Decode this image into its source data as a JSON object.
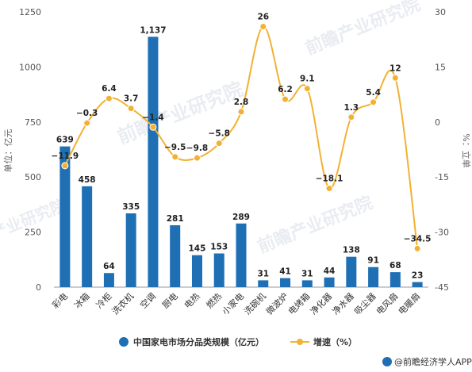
{
  "chart_data": {
    "type": "bar",
    "categories": [
      "彩电",
      "冰箱",
      "冷柜",
      "洗衣机",
      "空调",
      "厨电",
      "电热",
      "燃热",
      "小家电",
      "洗碗机",
      "微波炉",
      "电烤箱",
      "净化器",
      "净水器",
      "吸尘器",
      "电风扇",
      "电暖扇"
    ],
    "series": [
      {
        "name": "中国家电市场分品类规模（亿元）",
        "type": "bar",
        "axis": "left",
        "values": [
          639,
          458,
          64,
          335,
          1137,
          281,
          145,
          153,
          289,
          31,
          41,
          31,
          44,
          138,
          91,
          68,
          23
        ],
        "labels": [
          "639",
          "458",
          "64",
          "335",
          "1,137",
          "281",
          "145",
          "153",
          "289",
          "31",
          "41",
          "31",
          "44",
          "138",
          "91",
          "68",
          "23"
        ],
        "color": "#1f6fb5"
      },
      {
        "name": "增速（%）",
        "type": "line",
        "axis": "right",
        "values": [
          -11.9,
          -0.3,
          6.4,
          3.7,
          -1.4,
          -9.5,
          -9.8,
          -5.8,
          2.8,
          26,
          6.2,
          9.1,
          -18.1,
          1.3,
          5.4,
          12,
          -34.5
        ],
        "labels": [
          "−11.9",
          "−0.3",
          "6.4",
          "3.7",
          "−1.4",
          "−9.5",
          "−9.8",
          "−5.8",
          "2.8",
          "26",
          "6.2",
          "9.1",
          "−18.1",
          "1.3",
          "5.4",
          "12",
          "−34.5"
        ],
        "color": "#f2b134"
      }
    ],
    "y_left": {
      "label": "单位：亿元",
      "range": [
        0,
        1250
      ],
      "ticks": [
        "0",
        "250",
        "500",
        "750",
        "1000",
        "1250"
      ]
    },
    "y_right": {
      "label": "%：立单",
      "range": [
        -45,
        30
      ],
      "ticks": [
        "-45",
        "-30",
        "-15",
        "0",
        "15",
        "30"
      ]
    },
    "legend_position": "bottom",
    "grid": false
  },
  "watermark": "前瞻产业研究院",
  "source": "@前瞻经济学人APP"
}
